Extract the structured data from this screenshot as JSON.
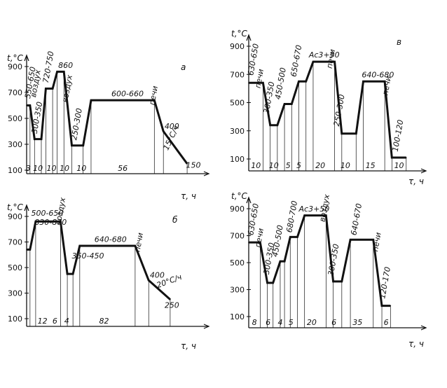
{
  "chart_data": [
    {
      "type": "line",
      "panel_label": "а",
      "ylabel": "t,°C",
      "xlabel": "τ, ч",
      "yticks": [
        100,
        300,
        500,
        700,
        900
      ],
      "profile": [
        {
          "x": 0,
          "y": 600
        },
        {
          "x": 3,
          "y": 600
        },
        {
          "x": 7,
          "y": 340
        },
        {
          "x": 13,
          "y": 340
        },
        {
          "x": 17,
          "y": 730
        },
        {
          "x": 23,
          "y": 730
        },
        {
          "x": 27,
          "y": 860
        },
        {
          "x": 33,
          "y": 860
        },
        {
          "x": 40,
          "y": 290
        },
        {
          "x": 50,
          "y": 290
        },
        {
          "x": 57,
          "y": 640
        },
        {
          "x": 113,
          "y": 640
        },
        {
          "x": 121,
          "y": 400
        },
        {
          "x": 142,
          "y": 150
        }
      ],
      "durations": [
        {
          "label": "3",
          "x0": 0,
          "x1": 3
        },
        {
          "label": "10",
          "x0": 3,
          "x1": 17
        },
        {
          "label": "10",
          "x0": 17,
          "x1": 27
        },
        {
          "label": "10",
          "x0": 27,
          "x1": 40
        },
        {
          "label": "10",
          "x0": 40,
          "x1": 57
        },
        {
          "label": "56",
          "x0": 57,
          "x1": 113
        }
      ],
      "temp_labels": [
        {
          "text": "550-650",
          "x": 3,
          "y": 650,
          "rot": -80
        },
        {
          "text": "воздух",
          "x": 8,
          "y": 660,
          "rot": -80
        },
        {
          "text": "300-350",
          "x": 9,
          "y": 380,
          "rot": -80
        },
        {
          "text": "720-750",
          "x": 19,
          "y": 770,
          "rot": -80
        },
        {
          "text": "860",
          "x": 28,
          "y": 890,
          "rot": 0
        },
        {
          "text": "воздух",
          "x": 36,
          "y": 620,
          "rot": -80
        },
        {
          "text": "250-300",
          "x": 44,
          "y": 330,
          "rot": -80
        },
        {
          "text": "600-660",
          "x": 75,
          "y": 670,
          "rot": 0
        },
        {
          "text": "15°С/ч",
          "x": 125,
          "y": 250,
          "rot": -65
        },
        {
          "text": "печи",
          "x": 113,
          "y": 600,
          "rot": -80
        },
        {
          "text": "400",
          "x": 122,
          "y": 420,
          "rot": 0
        },
        {
          "text": "150",
          "x": 141,
          "y": 120,
          "rot": 0
        }
      ]
    },
    {
      "type": "line",
      "panel_label": "б",
      "ylabel": "t,°C",
      "xlabel": "τ, ч",
      "yticks": [
        100,
        300,
        500,
        700,
        900
      ],
      "profile": [
        {
          "x": 0,
          "y": 640
        },
        {
          "x": 3,
          "y": 640
        },
        {
          "x": 8,
          "y": 860
        },
        {
          "x": 30,
          "y": 860
        },
        {
          "x": 36,
          "y": 450
        },
        {
          "x": 41,
          "y": 450
        },
        {
          "x": 47,
          "y": 670
        },
        {
          "x": 96,
          "y": 670
        },
        {
          "x": 108,
          "y": 400
        },
        {
          "x": 127,
          "y": 250
        }
      ],
      "durations": [
        {
          "label": "12",
          "x0": 8,
          "x1": 20
        },
        {
          "label": "6",
          "x0": 20,
          "x1": 30
        },
        {
          "label": "4",
          "x0": 30,
          "x1": 41
        },
        {
          "label": "82",
          "x0": 41,
          "x1": 96
        }
      ],
      "temp_labels": [
        {
          "text": "500-650",
          "x": 4,
          "y": 905,
          "rot": 0
        },
        {
          "text": "830-870",
          "x": 7,
          "y": 835,
          "rot": 0
        },
        {
          "text": "воздух",
          "x": 30,
          "y": 830,
          "rot": -80
        },
        {
          "text": "350-450",
          "x": 40,
          "y": 570,
          "rot": 0
        },
        {
          "text": "640-680",
          "x": 60,
          "y": 700,
          "rot": 0
        },
        {
          "text": "печи",
          "x": 100,
          "y": 620,
          "rot": -80
        },
        {
          "text": "400",
          "x": 109,
          "y": 420,
          "rot": 0
        },
        {
          "text": "20°С/ч",
          "x": 116,
          "y": 340,
          "rot": -20
        },
        {
          "text": "250",
          "x": 122,
          "y": 185,
          "rot": 0
        }
      ]
    },
    {
      "type": "line",
      "panel_label": "в",
      "ylabel": "t,°C",
      "xlabel": "τ, ч",
      "yticks": [
        100,
        300,
        500,
        700,
        900
      ],
      "profile": [
        {
          "x": 0,
          "y": 640
        },
        {
          "x": 10,
          "y": 640
        },
        {
          "x": 15,
          "y": 340
        },
        {
          "x": 20,
          "y": 340
        },
        {
          "x": 25,
          "y": 490
        },
        {
          "x": 30,
          "y": 490
        },
        {
          "x": 35,
          "y": 650
        },
        {
          "x": 40,
          "y": 650
        },
        {
          "x": 45,
          "y": 790
        },
        {
          "x": 60,
          "y": 790
        },
        {
          "x": 65,
          "y": 280
        },
        {
          "x": 75,
          "y": 280
        },
        {
          "x": 80,
          "y": 650
        },
        {
          "x": 95,
          "y": 650
        },
        {
          "x": 100,
          "y": 110
        },
        {
          "x": 110,
          "y": 110
        }
      ],
      "durations": [
        {
          "label": "10",
          "x0": 0,
          "x1": 10
        },
        {
          "label": "10",
          "x0": 10,
          "x1": 25
        },
        {
          "label": "5",
          "x0": 25,
          "x1": 30
        },
        {
          "label": "5",
          "x0": 30,
          "x1": 40
        },
        {
          "label": "20",
          "x0": 40,
          "x1": 60
        },
        {
          "label": "10",
          "x0": 60,
          "x1": 75
        },
        {
          "label": "15",
          "x0": 75,
          "x1": 95
        },
        {
          "label": "10",
          "x0": 100,
          "x1": 110
        }
      ],
      "temp_labels": [
        {
          "text": "630-650",
          "x": 3,
          "y": 690,
          "rot": -80
        },
        {
          "text": "печи",
          "x": 8,
          "y": 600,
          "rot": -80
        },
        {
          "text": "300-350",
          "x": 14,
          "y": 420,
          "rot": -80
        },
        {
          "text": "450-500",
          "x": 22,
          "y": 520,
          "rot": -80
        },
        {
          "text": "650-670",
          "x": 33,
          "y": 680,
          "rot": -80
        },
        {
          "text": "Ac3+50",
          "x": 42,
          "y": 820,
          "rot": 0
        },
        {
          "text": "печи",
          "x": 58,
          "y": 740,
          "rot": -80
        },
        {
          "text": "250-300",
          "x": 63,
          "y": 330,
          "rot": -80
        },
        {
          "text": "640-680",
          "x": 79,
          "y": 680,
          "rot": 0
        },
        {
          "text": "печи",
          "x": 97,
          "y": 550,
          "rot": -80
        },
        {
          "text": "100-120",
          "x": 104,
          "y": 150,
          "rot": -80
        }
      ]
    },
    {
      "type": "line",
      "panel_label": "",
      "ylabel": "t,°C",
      "xlabel": "τ, ч",
      "yticks": [
        100,
        300,
        500,
        700,
        900
      ],
      "profile": [
        {
          "x": 0,
          "y": 650
        },
        {
          "x": 8,
          "y": 650
        },
        {
          "x": 13,
          "y": 350
        },
        {
          "x": 17,
          "y": 350
        },
        {
          "x": 22,
          "y": 510
        },
        {
          "x": 25,
          "y": 510
        },
        {
          "x": 29,
          "y": 690
        },
        {
          "x": 34,
          "y": 690
        },
        {
          "x": 39,
          "y": 850
        },
        {
          "x": 54,
          "y": 850
        },
        {
          "x": 59,
          "y": 360
        },
        {
          "x": 65,
          "y": 360
        },
        {
          "x": 71,
          "y": 670
        },
        {
          "x": 87,
          "y": 670
        },
        {
          "x": 93,
          "y": 180
        },
        {
          "x": 99,
          "y": 180
        }
      ],
      "durations": [
        {
          "label": "8",
          "x0": 0,
          "x1": 8
        },
        {
          "label": "6",
          "x0": 8,
          "x1": 19
        },
        {
          "label": "4",
          "x0": 19,
          "x1": 25
        },
        {
          "label": "5",
          "x0": 25,
          "x1": 34
        },
        {
          "label": "20",
          "x0": 34,
          "x1": 54
        },
        {
          "label": "6",
          "x0": 54,
          "x1": 65
        },
        {
          "label": "35",
          "x0": 65,
          "x1": 87
        },
        {
          "label": "6",
          "x0": 93,
          "x1": 99
        }
      ],
      "temp_labels": [
        {
          "text": "630-650",
          "x": 3,
          "y": 700,
          "rot": -80
        },
        {
          "text": "печи",
          "x": 8,
          "y": 610,
          "rot": -80
        },
        {
          "text": "300-350",
          "x": 14,
          "y": 410,
          "rot": -80
        },
        {
          "text": "450-500",
          "x": 20,
          "y": 540,
          "rot": -80
        },
        {
          "text": "680-700",
          "x": 30,
          "y": 720,
          "rot": -80
        },
        {
          "text": "Ac3+50",
          "x": 35,
          "y": 880,
          "rot": 0
        },
        {
          "text": "воздух",
          "x": 53,
          "y": 800,
          "rot": -80
        },
        {
          "text": "300-350",
          "x": 59,
          "y": 400,
          "rot": -80
        },
        {
          "text": "640-670",
          "x": 75,
          "y": 700,
          "rot": -80
        },
        {
          "text": "печи",
          "x": 90,
          "y": 580,
          "rot": -80
        },
        {
          "text": "120-170",
          "x": 95,
          "y": 230,
          "rot": -80
        }
      ]
    }
  ]
}
